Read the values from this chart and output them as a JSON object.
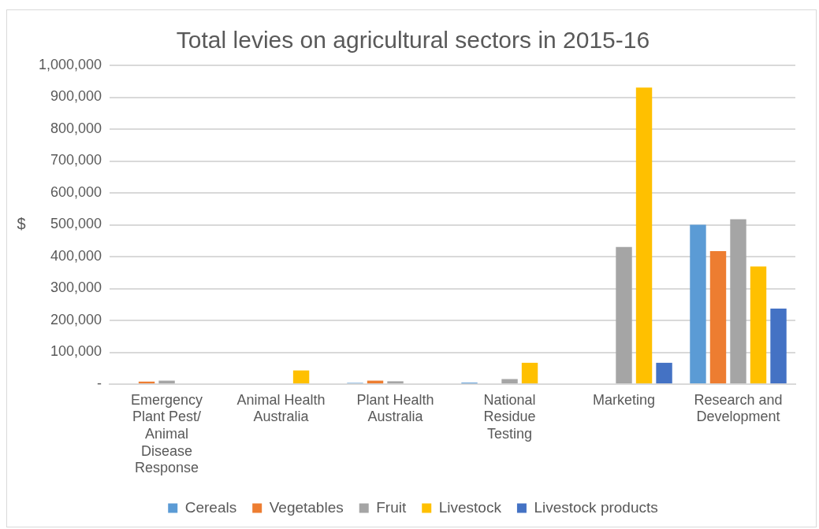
{
  "chart_data": {
    "type": "bar",
    "title": "Total levies on agricultural sectors in 2015-16",
    "ylabel": "$",
    "categories": [
      "Emergency Plant Pest/ Animal Disease Response",
      "Animal Health Australia",
      "Plant Health Australia",
      "National Residue Testing",
      "Marketing",
      "Research and Development"
    ],
    "series": [
      {
        "name": "Cereals",
        "color": "#5b9bd5",
        "values": [
          null,
          null,
          4000,
          5000,
          null,
          500000
        ]
      },
      {
        "name": "Vegetables",
        "color": "#ed7d31",
        "values": [
          8000,
          null,
          11000,
          null,
          null,
          417000
        ]
      },
      {
        "name": "Fruit",
        "color": "#a5a5a5",
        "values": [
          11000,
          null,
          9000,
          16000,
          430000,
          517000
        ]
      },
      {
        "name": "Livestock",
        "color": "#ffc000",
        "values": [
          null,
          43000,
          null,
          67000,
          930000,
          369000
        ]
      },
      {
        "name": "Livestock products",
        "color": "#4472c4",
        "values": [
          null,
          null,
          null,
          null,
          67000,
          237000
        ]
      }
    ],
    "ylim": [
      0,
      1000000
    ],
    "yticks": [
      {
        "value": 0,
        "label": "-"
      },
      {
        "value": 100000,
        "label": "100,000"
      },
      {
        "value": 200000,
        "label": "200,000"
      },
      {
        "value": 300000,
        "label": "300,000"
      },
      {
        "value": 400000,
        "label": "400,000"
      },
      {
        "value": 500000,
        "label": "500,000"
      },
      {
        "value": 600000,
        "label": "600,000"
      },
      {
        "value": 700000,
        "label": "700,000"
      },
      {
        "value": 800000,
        "label": "800,000"
      },
      {
        "value": 900000,
        "label": "900,000"
      },
      {
        "value": 1000000,
        "label": "1,000,000"
      }
    ],
    "grid": "y",
    "legend": "bottom"
  }
}
